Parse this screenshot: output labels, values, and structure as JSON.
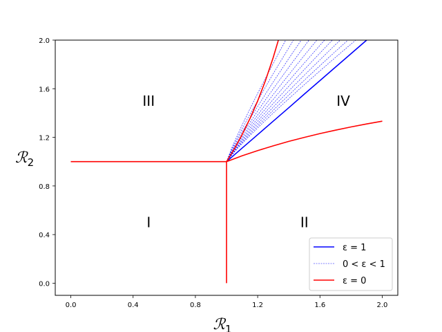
{
  "chart_data": {
    "type": "line",
    "xlabel": {
      "main": "ℛ",
      "sub": "1"
    },
    "ylabel": {
      "main": "ℛ",
      "sub": "2"
    },
    "xlim": [
      -0.1,
      2.1
    ],
    "ylim": [
      -0.1,
      2.0
    ],
    "xticks": [
      0.0,
      0.4,
      0.8,
      1.2,
      1.6,
      2.0
    ],
    "xtick_labels": [
      "0.0",
      "0.4",
      "0.8",
      "1.2",
      "1.6",
      "2.0"
    ],
    "yticks": [
      0.0,
      0.4,
      0.8,
      1.2,
      1.6,
      2.0
    ],
    "ytick_labels": [
      "0.0",
      "0.4",
      "0.8",
      "1.2",
      "1.6",
      "2.0"
    ],
    "grid": false,
    "legend_position": "lower-right",
    "legend": [
      {
        "label": "ε = 1",
        "color": "#0000ff",
        "style": "solid"
      },
      {
        "label": "0 < ε < 1",
        "color": "#0000ff",
        "style": "dashed"
      },
      {
        "label": "ε = 0",
        "color": "#ff0000",
        "style": "solid"
      }
    ],
    "regions": [
      {
        "label": "I",
        "x": 0.5,
        "y": 0.5
      },
      {
        "label": "II",
        "x": 1.5,
        "y": 0.5
      },
      {
        "label": "III",
        "x": 0.5,
        "y": 1.5
      },
      {
        "label": "IV",
        "x": 1.75,
        "y": 1.5
      }
    ],
    "series": [
      {
        "name": "ε = 1",
        "color": "#0000ff",
        "style": "solid",
        "x": [
          1.0,
          1.1,
          1.2,
          1.3,
          1.4,
          1.5,
          1.6,
          1.7,
          1.8,
          1.9
        ],
        "y": [
          1.0,
          1.111,
          1.222,
          1.333,
          1.444,
          1.556,
          1.667,
          1.778,
          1.889,
          2.0
        ]
      },
      {
        "name": "ε = 0",
        "color": "#ff0000",
        "style": "solid",
        "segments": [
          {
            "x": [
              0.0,
              1.0
            ],
            "y": [
              1.0,
              1.0
            ]
          },
          {
            "x": [
              1.0,
              1.0
            ],
            "y": [
              1.0,
              0.0
            ]
          },
          {
            "x": [
              1.0,
              1.05,
              1.1,
              1.15,
              1.2,
              1.25,
              1.3,
              1.333
            ],
            "y": [
              1.0,
              1.105,
              1.222,
              1.353,
              1.5,
              1.667,
              1.857,
              2.0
            ]
          },
          {
            "x": [
              1.0,
              1.1,
              1.2,
              1.3,
              1.4,
              1.5,
              1.6,
              1.7,
              1.8,
              1.9,
              2.0
            ],
            "y": [
              1.0,
              1.048,
              1.091,
              1.13,
              1.167,
              1.2,
              1.231,
              1.259,
              1.286,
              1.31,
              1.333
            ]
          }
        ]
      },
      {
        "name": "0 < ε < 1",
        "color": "#0000ff",
        "style": "dashed",
        "lines": [
          {
            "x_end": 1.38,
            "y_end": 2.0
          },
          {
            "x_end": 1.43,
            "y_end": 2.0
          },
          {
            "x_end": 1.48,
            "y_end": 2.0
          },
          {
            "x_end": 1.53,
            "y_end": 2.0
          },
          {
            "x_end": 1.58,
            "y_end": 2.0
          },
          {
            "x_end": 1.63,
            "y_end": 2.0
          },
          {
            "x_end": 1.68,
            "y_end": 2.0
          },
          {
            "x_end": 1.73,
            "y_end": 2.0
          },
          {
            "x_end": 1.78,
            "y_end": 2.0
          },
          {
            "x_end": 1.83,
            "y_end": 2.0
          }
        ],
        "start": {
          "x": 1.0,
          "y": 1.0
        }
      }
    ]
  }
}
